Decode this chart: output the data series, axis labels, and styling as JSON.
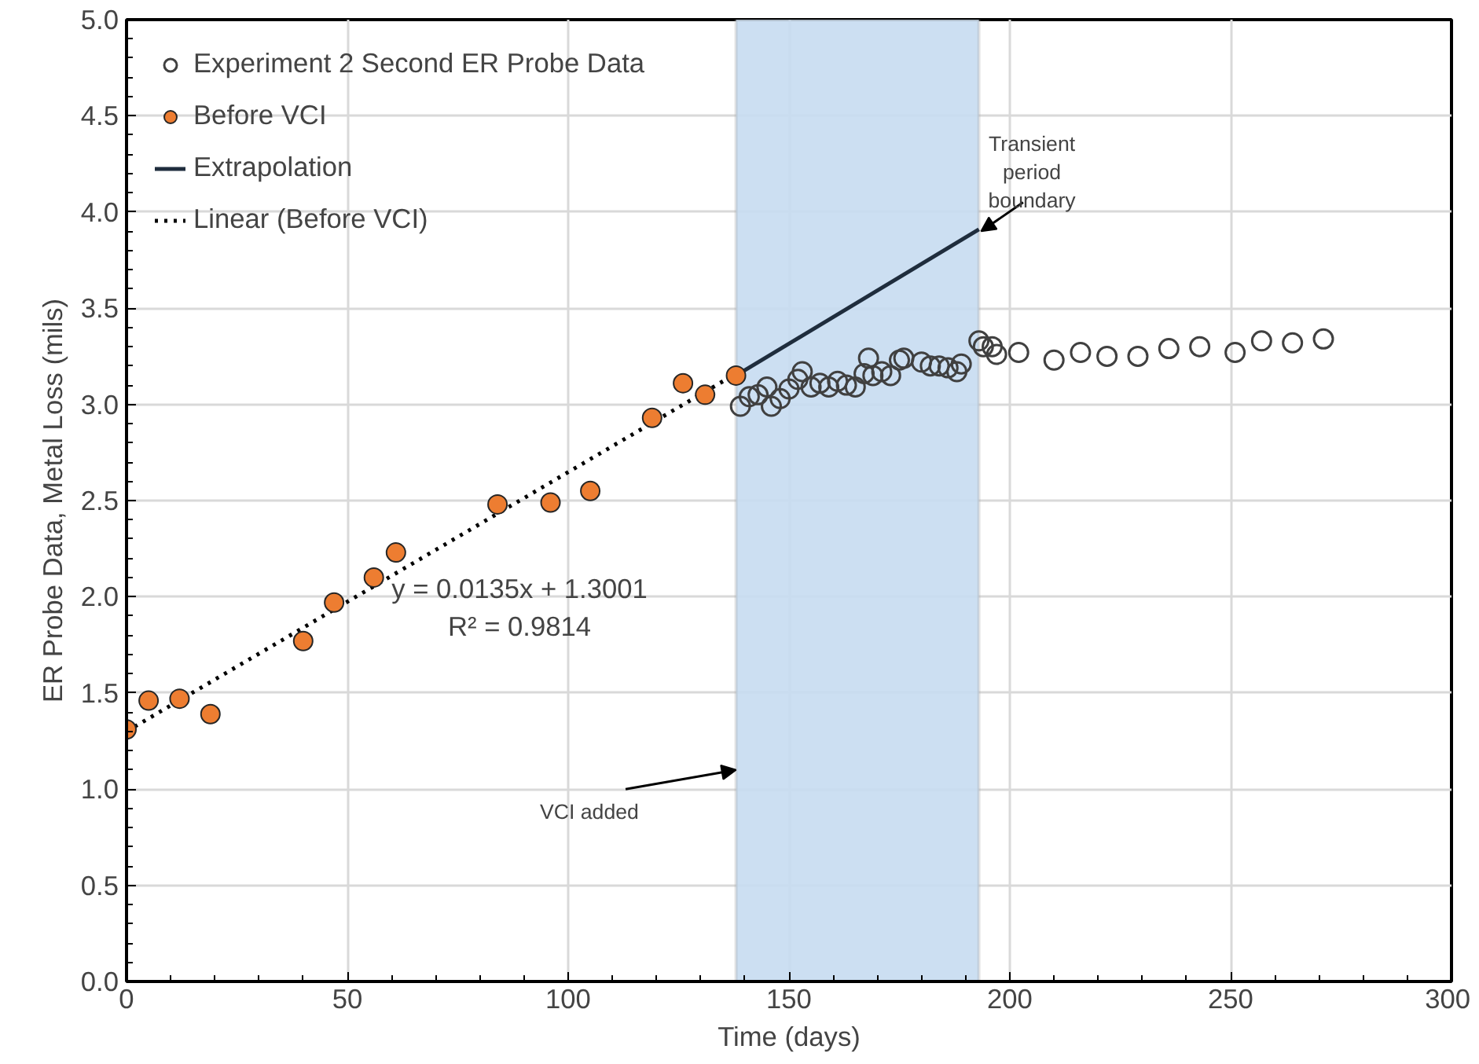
{
  "chart_data": {
    "type": "scatter",
    "xlabel": "Time (days)",
    "ylabel": "ER Probe Data, Metal Loss (mils)",
    "xlim": [
      0,
      300
    ],
    "ylim": [
      0,
      5.0
    ],
    "xticks": [
      0,
      50,
      100,
      150,
      200,
      250,
      300
    ],
    "yticks": [
      {
        "value": 0,
        "label": "0.0"
      },
      {
        "value": 0.5,
        "label": "0.5"
      },
      {
        "value": 1,
        "label": "1.0"
      },
      {
        "value": 1.5,
        "label": "1.5"
      },
      {
        "value": 2,
        "label": "2.0"
      },
      {
        "value": 2.5,
        "label": "2.5"
      },
      {
        "value": 3,
        "label": "3.0"
      },
      {
        "value": 3.5,
        "label": "3.5"
      },
      {
        "value": 4,
        "label": "4.0"
      },
      {
        "value": 4.5,
        "label": "4.5"
      },
      {
        "value": 5,
        "label": "5.0"
      }
    ],
    "grid": true,
    "legend": "top left",
    "bands": [
      {
        "axis": "x",
        "from": 138,
        "to": 193,
        "color": "#c6dcf1"
      }
    ],
    "series": [
      {
        "name": "Experiment 2 Second ER Probe Data",
        "marker": "circle",
        "color": "#404040",
        "x": [
          139,
          141,
          143,
          145,
          146,
          148,
          150,
          152,
          153,
          155,
          157,
          159,
          161,
          163,
          165,
          167,
          168,
          169,
          171,
          173,
          175,
          176,
          180,
          182,
          184,
          186,
          188,
          189,
          193,
          194,
          196,
          197,
          202,
          210,
          216,
          222,
          229,
          236,
          243,
          251,
          257,
          264,
          271
        ],
        "values": [
          2.99,
          3.04,
          3.05,
          3.09,
          2.99,
          3.03,
          3.08,
          3.13,
          3.17,
          3.09,
          3.11,
          3.09,
          3.12,
          3.1,
          3.09,
          3.16,
          3.24,
          3.15,
          3.17,
          3.15,
          3.23,
          3.24,
          3.22,
          3.2,
          3.2,
          3.19,
          3.17,
          3.21,
          3.33,
          3.3,
          3.3,
          3.26,
          3.27,
          3.23,
          3.27,
          3.25,
          3.25,
          3.29,
          3.3,
          3.27,
          3.33,
          3.32,
          3.34
        ]
      },
      {
        "name": "Before VCI",
        "marker": "circle",
        "color": "#ed7d31",
        "x": [
          0,
          5,
          12,
          19,
          40,
          47,
          56,
          61,
          84,
          96,
          105,
          119,
          126,
          131,
          138
        ],
        "values": [
          1.31,
          1.46,
          1.47,
          1.39,
          1.77,
          1.97,
          2.1,
          2.23,
          2.48,
          2.49,
          2.55,
          2.93,
          3.11,
          3.05,
          3.15
        ]
      },
      {
        "name": "Extrapolation",
        "type": "line",
        "line_style": "solid",
        "color": "#1f2d3d",
        "x": [
          138,
          193
        ],
        "values": [
          3.15,
          3.91
        ]
      },
      {
        "name": "Linear (Before VCI)",
        "type": "line",
        "line_style": "dotted",
        "color": "#000000",
        "x": [
          0,
          138
        ],
        "values": [
          1.3,
          3.16
        ]
      }
    ],
    "annotations": [
      "y = 0.0135x + 1.3001",
      "R² = 0.9814",
      {
        "text": "VCI added",
        "x": 138,
        "y": 1.1
      },
      {
        "text": "Transient\nperiod\nboundary",
        "x": 193,
        "y": 3.9
      }
    ]
  }
}
